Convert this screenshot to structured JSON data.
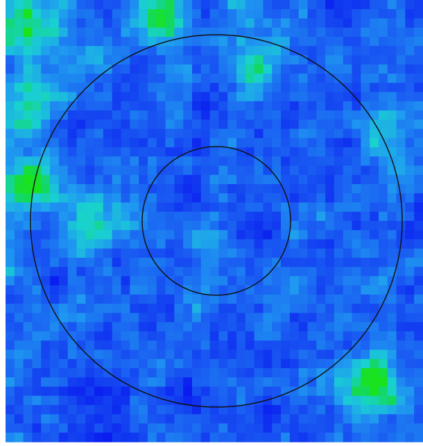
{
  "image": {
    "kind": "pixelated intensity heatmap with overlaid concentric circles",
    "colormap": {
      "low": "#0a1cf0",
      "mid_low": "#1a5cf2",
      "mid": "#1f9cf0",
      "mid_high": "#19d2d0",
      "high": "#12d860",
      "peak": "#19e21f"
    },
    "circle_color": "#111111",
    "background": "#ffffff",
    "grid": {
      "cols": 47,
      "rows": 48
    },
    "hotspots": [
      {
        "label": "top-left",
        "level": 0.75
      },
      {
        "label": "top-center",
        "level": 0.85
      },
      {
        "label": "left-mid",
        "level": 0.9
      },
      {
        "label": "bottom-right",
        "level": 1.0
      }
    ],
    "rings": [
      {
        "name": "inner",
        "relative_radius": 0.4
      },
      {
        "name": "outer",
        "relative_radius": 1.0
      }
    ]
  }
}
